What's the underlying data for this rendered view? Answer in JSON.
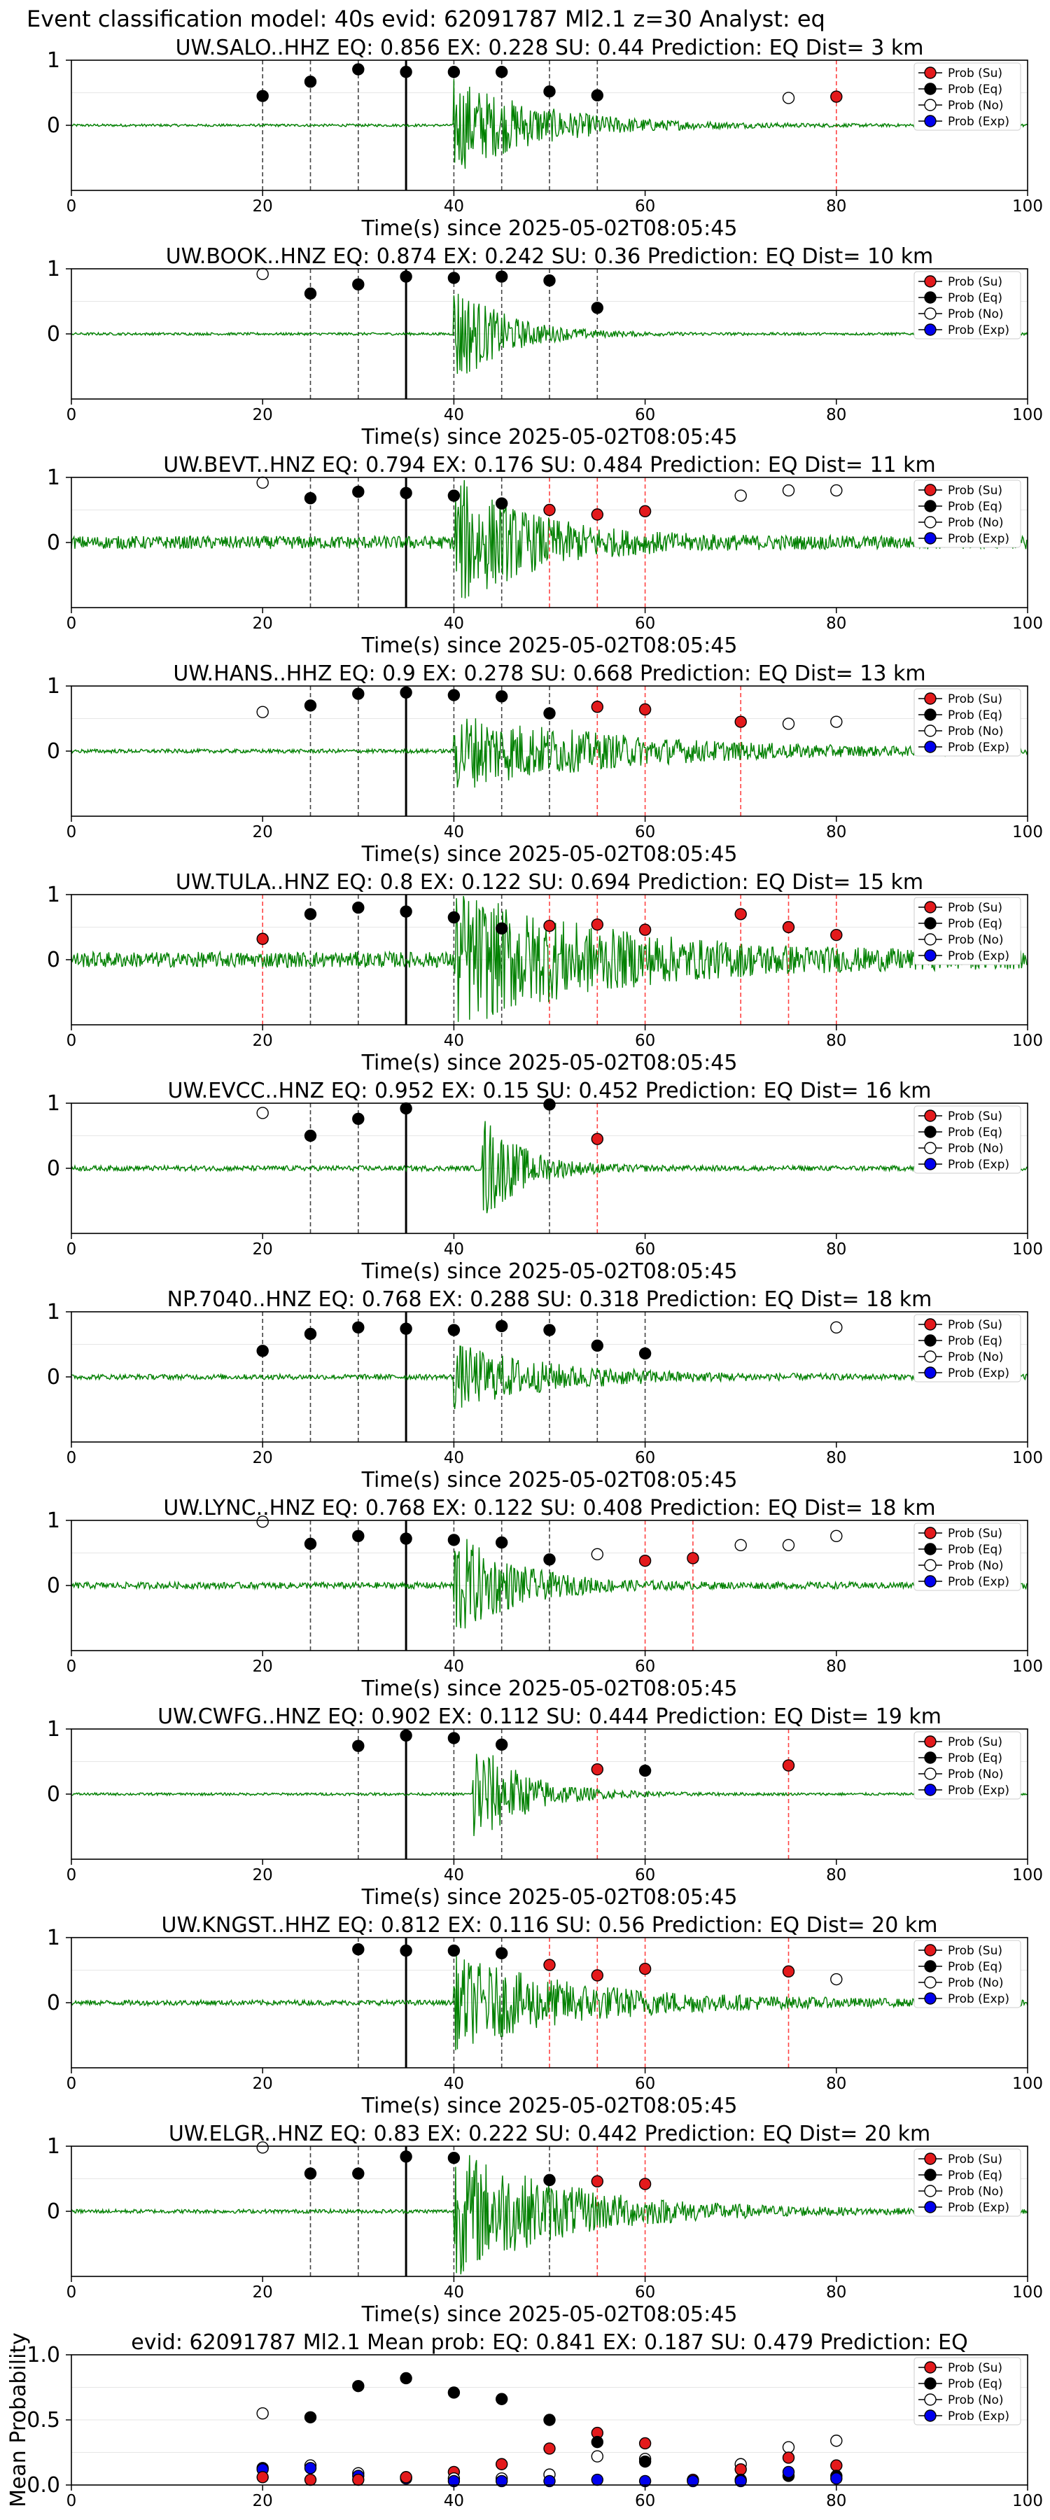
{
  "suptitle": "Event classification model: 40s evid: 62091787 Ml2.1 z=30 Analyst: eq",
  "xlabel": "Time(s) since 2025-05-02T08:05:45",
  "xticks": [
    "0",
    "20",
    "40",
    "60",
    "80",
    "100"
  ],
  "yticks": [
    "1",
    "0"
  ],
  "legend": [
    "Prob (Su)",
    "Prob (Eq)",
    "Prob (No)",
    "Prob (Exp)"
  ],
  "colors": {
    "su": "#e31a1c",
    "eq": "#000000",
    "no": "#ffffff",
    "exp": "#0000ee",
    "waveform": "#008000",
    "su_line": "#ff4444",
    "eq_line": "#444444"
  },
  "chart_data": [
    {
      "type": "line",
      "title": "UW.SALO..HHZ   EQ: 0.856  EX: 0.228  SU: 0.44   Prediction: EQ    Dist= 3 km",
      "xlim": [
        0,
        100
      ],
      "ylim": [
        -1,
        1
      ],
      "onset": 40,
      "pick": 35,
      "quiet": 0.02,
      "burst": 0.75,
      "decay": 9,
      "points": [
        {
          "x": 20,
          "y": 0.45,
          "c": "eq"
        },
        {
          "x": 25,
          "y": 0.67,
          "c": "eq"
        },
        {
          "x": 30,
          "y": 0.86,
          "c": "eq"
        },
        {
          "x": 35,
          "y": 0.82,
          "c": "eq"
        },
        {
          "x": 40,
          "y": 0.82,
          "c": "eq"
        },
        {
          "x": 45,
          "y": 0.82,
          "c": "eq"
        },
        {
          "x": 50,
          "y": 0.52,
          "c": "eq"
        },
        {
          "x": 55,
          "y": 0.46,
          "c": "eq"
        },
        {
          "x": 75,
          "y": 0.42,
          "c": "no"
        },
        {
          "x": 80,
          "y": 0.44,
          "c": "su"
        }
      ]
    },
    {
      "type": "line",
      "title": "UW.BOOK..HNZ   EQ: 0.874  EX: 0.242  SU: 0.36   Prediction: EQ    Dist= 10 km",
      "xlim": [
        0,
        100
      ],
      "ylim": [
        -1,
        1
      ],
      "onset": 40,
      "pick": 35,
      "quiet": 0.02,
      "burst": 0.85,
      "decay": 5,
      "points": [
        {
          "x": 20,
          "y": 0.92,
          "c": "no"
        },
        {
          "x": 25,
          "y": 0.62,
          "c": "eq"
        },
        {
          "x": 30,
          "y": 0.76,
          "c": "eq"
        },
        {
          "x": 35,
          "y": 0.88,
          "c": "eq"
        },
        {
          "x": 40,
          "y": 0.86,
          "c": "eq"
        },
        {
          "x": 45,
          "y": 0.88,
          "c": "eq"
        },
        {
          "x": 50,
          "y": 0.82,
          "c": "eq"
        },
        {
          "x": 55,
          "y": 0.4,
          "c": "eq"
        }
      ]
    },
    {
      "type": "line",
      "title": "UW.BEVT..HNZ   EQ: 0.794  EX: 0.176  SU: 0.484   Prediction: EQ    Dist= 11 km",
      "xlim": [
        0,
        100
      ],
      "ylim": [
        -1,
        1
      ],
      "onset": 40,
      "pick": 35,
      "quiet": 0.1,
      "burst": 1.0,
      "decay": 8,
      "points": [
        {
          "x": 20,
          "y": 0.92,
          "c": "no"
        },
        {
          "x": 25,
          "y": 0.68,
          "c": "eq"
        },
        {
          "x": 30,
          "y": 0.78,
          "c": "eq"
        },
        {
          "x": 35,
          "y": 0.76,
          "c": "eq"
        },
        {
          "x": 40,
          "y": 0.72,
          "c": "eq"
        },
        {
          "x": 45,
          "y": 0.6,
          "c": "eq"
        },
        {
          "x": 50,
          "y": 0.5,
          "c": "su"
        },
        {
          "x": 55,
          "y": 0.43,
          "c": "su"
        },
        {
          "x": 60,
          "y": 0.48,
          "c": "su"
        },
        {
          "x": 70,
          "y": 0.72,
          "c": "no"
        },
        {
          "x": 75,
          "y": 0.8,
          "c": "no"
        },
        {
          "x": 80,
          "y": 0.8,
          "c": "no"
        }
      ]
    },
    {
      "type": "line",
      "title": "UW.HANS..HHZ   EQ: 0.9  EX: 0.278  SU: 0.668   Prediction: EQ    Dist= 13 km",
      "xlim": [
        0,
        100
      ],
      "ylim": [
        -1,
        1
      ],
      "onset": 40,
      "pick": 35,
      "quiet": 0.03,
      "burst": 0.6,
      "decay": 18,
      "points": [
        {
          "x": 20,
          "y": 0.6,
          "c": "no"
        },
        {
          "x": 25,
          "y": 0.7,
          "c": "eq"
        },
        {
          "x": 30,
          "y": 0.88,
          "c": "eq"
        },
        {
          "x": 35,
          "y": 0.9,
          "c": "eq"
        },
        {
          "x": 40,
          "y": 0.86,
          "c": "eq"
        },
        {
          "x": 45,
          "y": 0.84,
          "c": "eq"
        },
        {
          "x": 50,
          "y": 0.58,
          "c": "eq"
        },
        {
          "x": 55,
          "y": 0.68,
          "c": "su"
        },
        {
          "x": 60,
          "y": 0.64,
          "c": "su"
        },
        {
          "x": 70,
          "y": 0.45,
          "c": "su"
        },
        {
          "x": 75,
          "y": 0.42,
          "c": "no"
        },
        {
          "x": 80,
          "y": 0.45,
          "c": "no"
        }
      ]
    },
    {
      "type": "line",
      "title": "UW.TULA..HNZ   EQ: 0.8  EX: 0.122  SU: 0.694   Prediction: EQ    Dist= 15 km",
      "xlim": [
        0,
        100
      ],
      "ylim": [
        -1,
        1
      ],
      "onset": 40,
      "pick": 35,
      "quiet": 0.12,
      "burst": 1.0,
      "decay": 16,
      "points": [
        {
          "x": 20,
          "y": 0.32,
          "c": "su"
        },
        {
          "x": 25,
          "y": 0.7,
          "c": "eq"
        },
        {
          "x": 30,
          "y": 0.8,
          "c": "eq"
        },
        {
          "x": 35,
          "y": 0.74,
          "c": "eq"
        },
        {
          "x": 40,
          "y": 0.65,
          "c": "eq"
        },
        {
          "x": 45,
          "y": 0.48,
          "c": "eq"
        },
        {
          "x": 50,
          "y": 0.52,
          "c": "su"
        },
        {
          "x": 55,
          "y": 0.54,
          "c": "su"
        },
        {
          "x": 60,
          "y": 0.46,
          "c": "su"
        },
        {
          "x": 70,
          "y": 0.7,
          "c": "su"
        },
        {
          "x": 75,
          "y": 0.5,
          "c": "su"
        },
        {
          "x": 80,
          "y": 0.38,
          "c": "su"
        }
      ]
    },
    {
      "type": "line",
      "title": "UW.EVCC..HNZ   EQ: 0.952  EX: 0.15  SU: 0.452   Prediction: EQ    Dist= 16 km",
      "xlim": [
        0,
        100
      ],
      "ylim": [
        -1,
        1
      ],
      "onset": 43,
      "pick": 35,
      "quiet": 0.04,
      "burst": 0.85,
      "decay": 4,
      "points": [
        {
          "x": 20,
          "y": 0.85,
          "c": "no"
        },
        {
          "x": 25,
          "y": 0.5,
          "c": "eq"
        },
        {
          "x": 30,
          "y": 0.76,
          "c": "eq"
        },
        {
          "x": 35,
          "y": 0.92,
          "c": "eq"
        },
        {
          "x": 50,
          "y": 0.98,
          "c": "eq"
        },
        {
          "x": 55,
          "y": 0.45,
          "c": "su"
        }
      ]
    },
    {
      "type": "line",
      "title": "NP.7040..HNZ   EQ: 0.768  EX: 0.288  SU: 0.318   Prediction: EQ    Dist= 18 km",
      "xlim": [
        0,
        100
      ],
      "ylim": [
        -1,
        1
      ],
      "onset": 40,
      "pick": 35,
      "quiet": 0.04,
      "burst": 0.5,
      "decay": 10,
      "points": [
        {
          "x": 20,
          "y": 0.4,
          "c": "eq"
        },
        {
          "x": 25,
          "y": 0.66,
          "c": "eq"
        },
        {
          "x": 30,
          "y": 0.76,
          "c": "eq"
        },
        {
          "x": 35,
          "y": 0.74,
          "c": "eq"
        },
        {
          "x": 40,
          "y": 0.72,
          "c": "eq"
        },
        {
          "x": 45,
          "y": 0.78,
          "c": "eq"
        },
        {
          "x": 50,
          "y": 0.72,
          "c": "eq"
        },
        {
          "x": 55,
          "y": 0.48,
          "c": "eq"
        },
        {
          "x": 60,
          "y": 0.36,
          "c": "eq"
        },
        {
          "x": 80,
          "y": 0.76,
          "c": "no"
        }
      ]
    },
    {
      "type": "line",
      "title": "UW.LYNC..HNZ   EQ: 0.768  EX: 0.122  SU: 0.408   Prediction: EQ    Dist= 18 km",
      "xlim": [
        0,
        100
      ],
      "ylim": [
        -1,
        1
      ],
      "onset": 40,
      "pick": 35,
      "quiet": 0.05,
      "burst": 0.85,
      "decay": 6,
      "points": [
        {
          "x": 20,
          "y": 0.98,
          "c": "no"
        },
        {
          "x": 25,
          "y": 0.64,
          "c": "eq"
        },
        {
          "x": 30,
          "y": 0.76,
          "c": "eq"
        },
        {
          "x": 35,
          "y": 0.72,
          "c": "eq"
        },
        {
          "x": 40,
          "y": 0.7,
          "c": "eq"
        },
        {
          "x": 45,
          "y": 0.66,
          "c": "eq"
        },
        {
          "x": 50,
          "y": 0.4,
          "c": "eq"
        },
        {
          "x": 55,
          "y": 0.48,
          "c": "no"
        },
        {
          "x": 60,
          "y": 0.38,
          "c": "su"
        },
        {
          "x": 65,
          "y": 0.42,
          "c": "su"
        },
        {
          "x": 70,
          "y": 0.62,
          "c": "no"
        },
        {
          "x": 75,
          "y": 0.62,
          "c": "no"
        },
        {
          "x": 80,
          "y": 0.76,
          "c": "no"
        }
      ]
    },
    {
      "type": "line",
      "title": "UW.CWFG..HNZ   EQ: 0.902  EX: 0.112  SU: 0.444   Prediction: EQ    Dist= 19 km",
      "xlim": [
        0,
        100
      ],
      "ylim": [
        -1,
        1
      ],
      "onset": 42,
      "pick": 35,
      "quiet": 0.02,
      "burst": 0.9,
      "decay": 5,
      "points": [
        {
          "x": 30,
          "y": 0.74,
          "c": "eq"
        },
        {
          "x": 35,
          "y": 0.9,
          "c": "eq"
        },
        {
          "x": 40,
          "y": 0.86,
          "c": "eq"
        },
        {
          "x": 45,
          "y": 0.76,
          "c": "eq"
        },
        {
          "x": 55,
          "y": 0.38,
          "c": "su"
        },
        {
          "x": 60,
          "y": 0.36,
          "c": "eq"
        },
        {
          "x": 75,
          "y": 0.44,
          "c": "su"
        }
      ]
    },
    {
      "type": "line",
      "title": "UW.KNGST..HHZ   EQ: 0.812  EX: 0.116  SU: 0.56   Prediction: EQ    Dist= 20 km",
      "xlim": [
        0,
        100
      ],
      "ylim": [
        -1,
        1
      ],
      "onset": 40,
      "pick": 35,
      "quiet": 0.04,
      "burst": 0.7,
      "decay": 14,
      "points": [
        {
          "x": 30,
          "y": 0.82,
          "c": "eq"
        },
        {
          "x": 35,
          "y": 0.8,
          "c": "eq"
        },
        {
          "x": 40,
          "y": 0.8,
          "c": "eq"
        },
        {
          "x": 45,
          "y": 0.76,
          "c": "eq"
        },
        {
          "x": 50,
          "y": 0.58,
          "c": "su"
        },
        {
          "x": 55,
          "y": 0.42,
          "c": "su"
        },
        {
          "x": 60,
          "y": 0.52,
          "c": "su"
        },
        {
          "x": 75,
          "y": 0.48,
          "c": "su"
        },
        {
          "x": 80,
          "y": 0.36,
          "c": "no"
        }
      ]
    },
    {
      "type": "line",
      "title": "UW.ELGR..HNZ   EQ: 0.83  EX: 0.222  SU: 0.442   Prediction: EQ    Dist= 20 km",
      "xlim": [
        0,
        100
      ],
      "ylim": [
        -1,
        1
      ],
      "onset": 40,
      "pick": 35,
      "quiet": 0.03,
      "burst": 1.0,
      "decay": 12,
      "points": [
        {
          "x": 20,
          "y": 0.98,
          "c": "no"
        },
        {
          "x": 25,
          "y": 0.58,
          "c": "eq"
        },
        {
          "x": 30,
          "y": 0.58,
          "c": "eq"
        },
        {
          "x": 35,
          "y": 0.84,
          "c": "eq"
        },
        {
          "x": 40,
          "y": 0.82,
          "c": "eq"
        },
        {
          "x": 50,
          "y": 0.48,
          "c": "eq"
        },
        {
          "x": 55,
          "y": 0.46,
          "c": "su"
        },
        {
          "x": 60,
          "y": 0.42,
          "c": "su"
        }
      ]
    },
    {
      "type": "scatter",
      "title": "evid: 62091787  Ml2.1   Mean prob:   EQ: 0.841  EX: 0.187  SU: 0.479   Prediction: EQ",
      "ylabel": "Mean Probability",
      "xlim": [
        0,
        100
      ],
      "ylim": [
        0,
        1
      ],
      "yticks": [
        "1.0",
        "0.5",
        "0.0"
      ],
      "points": [
        {
          "x": 20,
          "y": 0.55,
          "c": "no"
        },
        {
          "x": 20,
          "y": 0.13,
          "c": "eq"
        },
        {
          "x": 20,
          "y": 0.12,
          "c": "exp"
        },
        {
          "x": 20,
          "y": 0.06,
          "c": "su"
        },
        {
          "x": 25,
          "y": 0.52,
          "c": "eq"
        },
        {
          "x": 25,
          "y": 0.15,
          "c": "no"
        },
        {
          "x": 25,
          "y": 0.13,
          "c": "exp"
        },
        {
          "x": 25,
          "y": 0.04,
          "c": "su"
        },
        {
          "x": 30,
          "y": 0.76,
          "c": "eq"
        },
        {
          "x": 30,
          "y": 0.09,
          "c": "no"
        },
        {
          "x": 30,
          "y": 0.07,
          "c": "exp"
        },
        {
          "x": 30,
          "y": 0.04,
          "c": "su"
        },
        {
          "x": 35,
          "y": 0.82,
          "c": "eq"
        },
        {
          "x": 35,
          "y": 0.06,
          "c": "no"
        },
        {
          "x": 35,
          "y": 0.05,
          "c": "exp"
        },
        {
          "x": 35,
          "y": 0.06,
          "c": "su"
        },
        {
          "x": 40,
          "y": 0.71,
          "c": "eq"
        },
        {
          "x": 40,
          "y": 0.1,
          "c": "su"
        },
        {
          "x": 40,
          "y": 0.05,
          "c": "no"
        },
        {
          "x": 40,
          "y": 0.03,
          "c": "exp"
        },
        {
          "x": 45,
          "y": 0.66,
          "c": "eq"
        },
        {
          "x": 45,
          "y": 0.16,
          "c": "su"
        },
        {
          "x": 45,
          "y": 0.05,
          "c": "no"
        },
        {
          "x": 45,
          "y": 0.03,
          "c": "exp"
        },
        {
          "x": 50,
          "y": 0.5,
          "c": "eq"
        },
        {
          "x": 50,
          "y": 0.28,
          "c": "su"
        },
        {
          "x": 50,
          "y": 0.08,
          "c": "no"
        },
        {
          "x": 50,
          "y": 0.03,
          "c": "exp"
        },
        {
          "x": 55,
          "y": 0.4,
          "c": "su"
        },
        {
          "x": 55,
          "y": 0.33,
          "c": "eq"
        },
        {
          "x": 55,
          "y": 0.22,
          "c": "no"
        },
        {
          "x": 55,
          "y": 0.04,
          "c": "exp"
        },
        {
          "x": 60,
          "y": 0.32,
          "c": "su"
        },
        {
          "x": 60,
          "y": 0.2,
          "c": "no"
        },
        {
          "x": 60,
          "y": 0.18,
          "c": "eq"
        },
        {
          "x": 60,
          "y": 0.03,
          "c": "exp"
        },
        {
          "x": 65,
          "y": 0.04,
          "c": "su"
        },
        {
          "x": 65,
          "y": 0.03,
          "c": "exp"
        },
        {
          "x": 70,
          "y": 0.16,
          "c": "no"
        },
        {
          "x": 70,
          "y": 0.12,
          "c": "su"
        },
        {
          "x": 70,
          "y": 0.04,
          "c": "eq"
        },
        {
          "x": 70,
          "y": 0.03,
          "c": "exp"
        },
        {
          "x": 75,
          "y": 0.29,
          "c": "no"
        },
        {
          "x": 75,
          "y": 0.21,
          "c": "su"
        },
        {
          "x": 75,
          "y": 0.07,
          "c": "eq"
        },
        {
          "x": 75,
          "y": 0.1,
          "c": "exp"
        },
        {
          "x": 80,
          "y": 0.34,
          "c": "no"
        },
        {
          "x": 80,
          "y": 0.15,
          "c": "su"
        },
        {
          "x": 80,
          "y": 0.07,
          "c": "eq"
        },
        {
          "x": 80,
          "y": 0.05,
          "c": "exp"
        }
      ]
    }
  ]
}
